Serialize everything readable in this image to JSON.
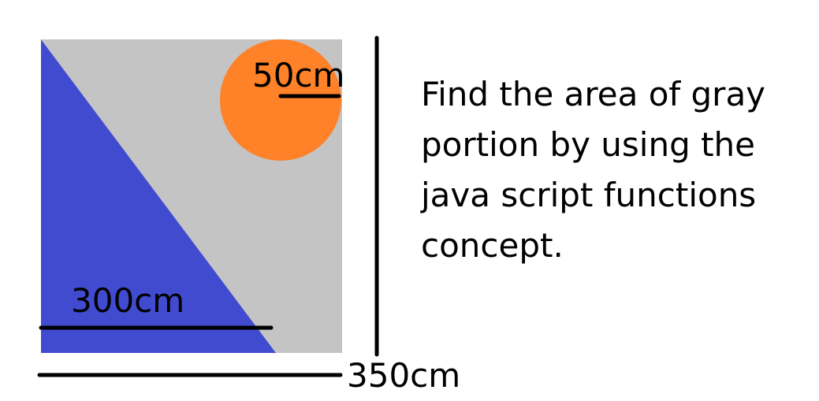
{
  "figure": {
    "colors": {
      "gray_region": "#c4c4c4",
      "triangle": "#414bd0",
      "circle": "#ff8128",
      "lines": "#000000"
    },
    "labels": {
      "circle_radius": "50cm",
      "triangle_base": "300cm",
      "square_side": "350cm"
    }
  },
  "problem": {
    "lines": [
      "Find the area of gray",
      "portion by using the",
      "java script functions",
      "concept."
    ]
  }
}
